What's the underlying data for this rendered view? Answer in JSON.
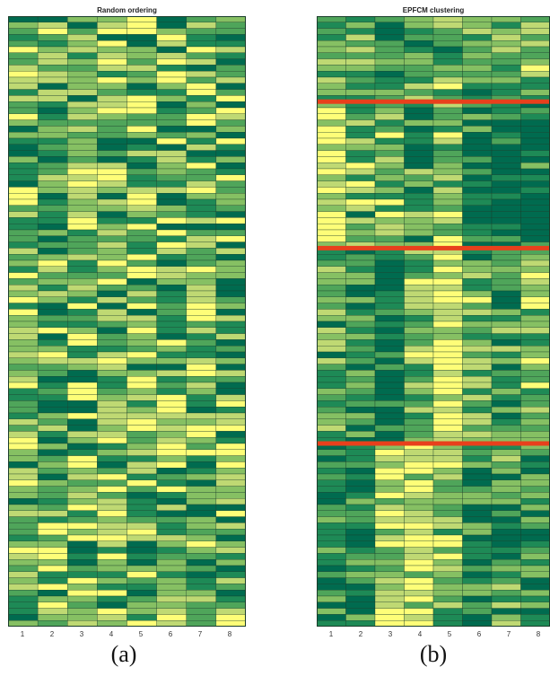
{
  "chart_data": [
    {
      "type": "heatmap",
      "title": "Random ordering",
      "xlabel": "",
      "ylabel": "",
      "columns": [
        "1",
        "2",
        "3",
        "4",
        "5",
        "6",
        "7",
        "8"
      ],
      "rows": 100,
      "colorscale": [
        "#006b4f",
        "#1e8a56",
        "#4fa55a",
        "#86c063",
        "#bfd973",
        "#fefe78"
      ],
      "separators_after_rows": []
    },
    {
      "type": "heatmap",
      "title": "EPFCM clustering",
      "xlabel": "",
      "ylabel": "",
      "columns": [
        "1",
        "2",
        "3",
        "4",
        "5",
        "6",
        "7",
        "8"
      ],
      "rows": 100,
      "colorscale": [
        "#006b4f",
        "#1e8a56",
        "#4fa55a",
        "#86c063",
        "#bfd973",
        "#fefe78"
      ],
      "separators_after_rows": [
        14,
        38,
        70
      ],
      "separator_color": "#e8401c"
    }
  ],
  "captions": {
    "a": "(a)",
    "b": "(b)"
  }
}
